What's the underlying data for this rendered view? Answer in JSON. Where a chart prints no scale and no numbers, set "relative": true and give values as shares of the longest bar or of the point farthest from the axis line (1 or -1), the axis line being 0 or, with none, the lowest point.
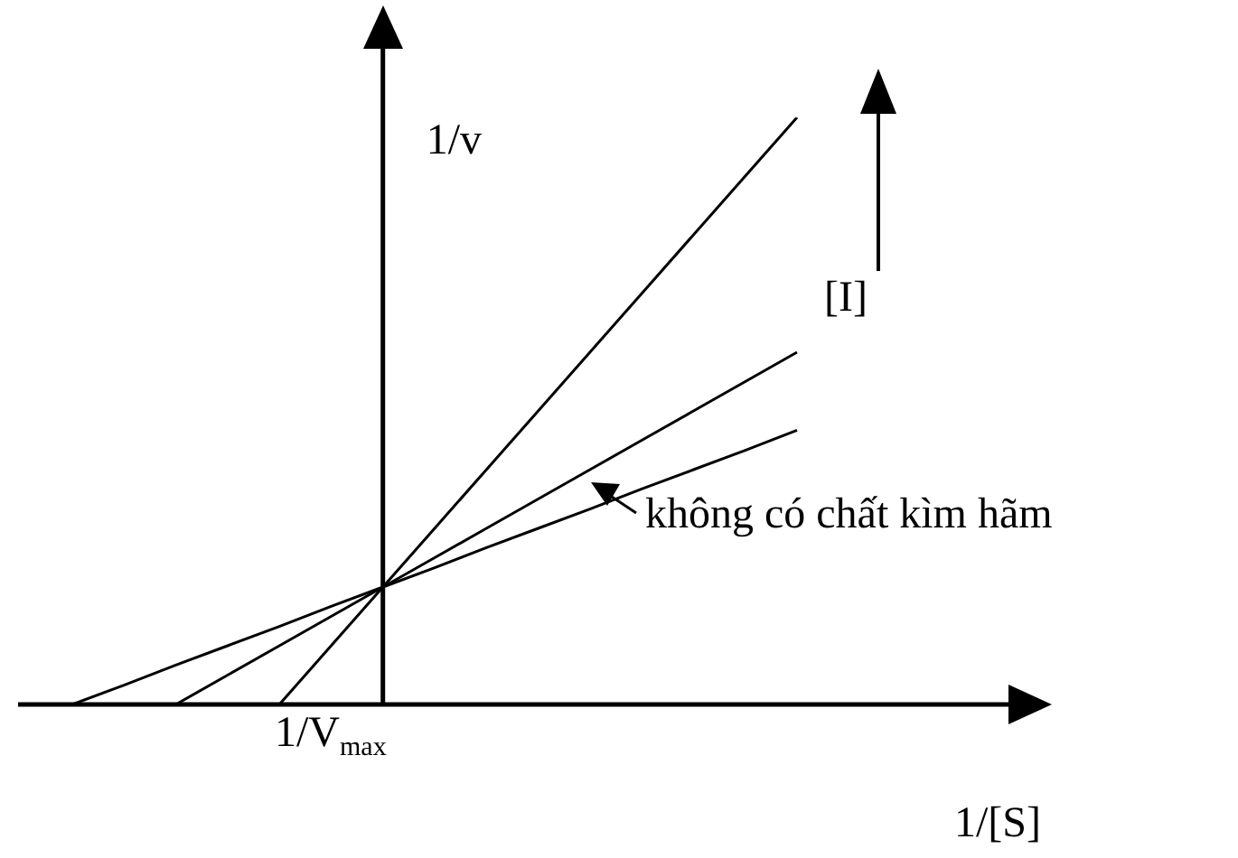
{
  "chart_data": {
    "type": "line",
    "relative": true,
    "xlabel": "1/[S]",
    "ylabel": "1/v",
    "line_style": "solid",
    "categories": [
      null,
      null,
      null,
      null,
      null,
      null,
      null,
      null,
      null,
      null,
      null,
      null,
      null,
      null,
      null
    ],
    "series": [
      {
        "color": "#000000",
        "values": [
          null,
          null,
          null,
          null,
          0,
          0.1,
          0.2,
          0.3,
          0.4,
          0.5,
          0.6,
          0.7,
          0.8,
          0.9,
          1.0
        ]
      },
      {
        "color": "#000000",
        "values": [
          null,
          null,
          0,
          0.05,
          0.1,
          0.15,
          0.2,
          0.25,
          0.3,
          0.35,
          0.4,
          0.45,
          0.5,
          0.55,
          0.6
        ]
      },
      {
        "color": "#000000",
        "values": [
          0,
          0.033,
          0.067,
          0.1,
          0.133,
          0.167,
          0.2,
          0.233,
          0.267,
          0.3,
          0.333,
          0.367,
          0.4,
          0.433,
          0.467
        ]
      }
    ],
    "annotations": [
      "1/V$_{max}$",
      "[I]",
      "không có chất kìm hãm"
    ]
  }
}
